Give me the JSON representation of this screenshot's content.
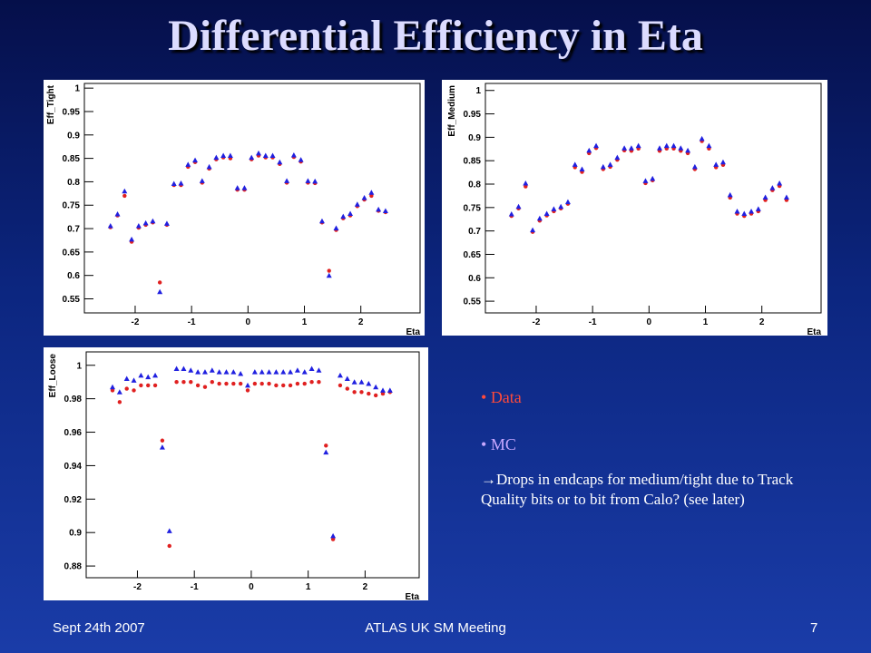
{
  "slide": {
    "title": "Differential Efficiency in Eta",
    "note": "→Drops in endcaps for medium/tight due to Track Quality bits or to bit from Calo? (see later)",
    "footer_left": "Sept 24th 2007",
    "footer_center": "ATLAS UK SM Meeting",
    "page_number": "7"
  },
  "chart_data": [
    {
      "type": "scatter",
      "ylabel": "Eff_Tight",
      "xlabel": "Eta",
      "xlim": [
        -2.9,
        3.05
      ],
      "ylim": [
        0.52,
        1.01
      ],
      "xticks": [
        -2,
        -1,
        0,
        1,
        2
      ],
      "yticks": [
        0.55,
        0.6,
        0.65,
        0.7,
        0.75,
        0.8,
        0.85,
        0.9,
        0.95,
        1
      ],
      "x": [
        -2.4375,
        -2.3125,
        -2.1875,
        -2.0625,
        -1.9375,
        -1.8125,
        -1.6875,
        -1.5625,
        -1.4375,
        -1.3125,
        -1.1875,
        -1.0625,
        -0.9375,
        -0.8125,
        -0.6875,
        -0.5625,
        -0.4375,
        -0.3125,
        -0.1875,
        -0.0625,
        0.0625,
        0.1875,
        0.3125,
        0.4375,
        0.5625,
        0.6875,
        0.8125,
        0.9375,
        1.0625,
        1.1875,
        1.3125,
        1.4375,
        1.5625,
        1.6875,
        1.8125,
        1.9375,
        2.0625,
        2.1875,
        2.3125,
        2.4375
      ],
      "series": [
        {
          "name": "Data",
          "color": "#e02020",
          "marker": "circle",
          "values": [
            0.703,
            0.728,
            0.77,
            0.672,
            0.702,
            0.708,
            0.713,
            0.585,
            0.708,
            0.793,
            0.793,
            0.832,
            0.842,
            0.798,
            0.828,
            0.848,
            0.852,
            0.85,
            0.783,
            0.783,
            0.848,
            0.856,
            0.852,
            0.852,
            0.838,
            0.798,
            0.853,
            0.843,
            0.798,
            0.797,
            0.713,
            0.61,
            0.697,
            0.722,
            0.728,
            0.748,
            0.762,
            0.77,
            0.738,
            0.735
          ]
        },
        {
          "name": "MC",
          "color": "#2020e0",
          "marker": "triangle",
          "values": [
            0.706,
            0.731,
            0.78,
            0.677,
            0.706,
            0.712,
            0.716,
            0.565,
            0.711,
            0.796,
            0.797,
            0.837,
            0.846,
            0.802,
            0.832,
            0.852,
            0.856,
            0.856,
            0.787,
            0.787,
            0.852,
            0.861,
            0.856,
            0.856,
            0.842,
            0.802,
            0.857,
            0.847,
            0.802,
            0.801,
            0.716,
            0.6,
            0.701,
            0.726,
            0.732,
            0.752,
            0.766,
            0.777,
            0.741,
            0.738
          ]
        }
      ]
    },
    {
      "type": "scatter",
      "ylabel": "Eff_Medium",
      "xlabel": "Eta",
      "xlim": [
        -2.9,
        3.05
      ],
      "ylim": [
        0.525,
        1.015
      ],
      "xticks": [
        -2,
        -1,
        0,
        1,
        2
      ],
      "yticks": [
        0.55,
        0.6,
        0.65,
        0.7,
        0.75,
        0.8,
        0.85,
        0.9,
        0.95,
        1
      ],
      "x": [
        -2.4375,
        -2.3125,
        -2.1875,
        -2.0625,
        -1.9375,
        -1.8125,
        -1.6875,
        -1.5625,
        -1.4375,
        -1.3125,
        -1.1875,
        -1.0625,
        -0.9375,
        -0.8125,
        -0.6875,
        -0.5625,
        -0.4375,
        -0.3125,
        -0.1875,
        -0.0625,
        0.0625,
        0.1875,
        0.3125,
        0.4375,
        0.5625,
        0.6875,
        0.8125,
        0.9375,
        1.0625,
        1.1875,
        1.3125,
        1.4375,
        1.5625,
        1.6875,
        1.8125,
        1.9375,
        2.0625,
        2.1875,
        2.3125,
        2.4375
      ],
      "series": [
        {
          "color": "#e02020",
          "marker": "circle",
          "values": [
            0.732,
            0.748,
            0.795,
            0.698,
            0.722,
            0.733,
            0.742,
            0.748,
            0.758,
            0.836,
            0.826,
            0.866,
            0.877,
            0.832,
            0.837,
            0.852,
            0.872,
            0.871,
            0.876,
            0.802,
            0.808,
            0.871,
            0.876,
            0.876,
            0.871,
            0.866,
            0.832,
            0.892,
            0.876,
            0.836,
            0.841,
            0.771,
            0.737,
            0.732,
            0.737,
            0.742,
            0.766,
            0.787,
            0.796,
            0.766
          ]
        },
        {
          "color": "#2020e0",
          "marker": "triangle",
          "values": [
            0.736,
            0.752,
            0.802,
            0.702,
            0.727,
            0.737,
            0.747,
            0.752,
            0.762,
            0.842,
            0.832,
            0.872,
            0.882,
            0.837,
            0.842,
            0.857,
            0.877,
            0.877,
            0.882,
            0.807,
            0.812,
            0.877,
            0.882,
            0.882,
            0.877,
            0.872,
            0.837,
            0.897,
            0.882,
            0.842,
            0.847,
            0.777,
            0.742,
            0.737,
            0.742,
            0.747,
            0.772,
            0.792,
            0.802,
            0.772
          ]
        }
      ]
    },
    {
      "type": "scatter",
      "ylabel": "Eff_Loose",
      "xlabel": "Eta",
      "xlim": [
        -2.9,
        2.95
      ],
      "ylim": [
        0.873,
        1.008
      ],
      "xticks": [
        -2,
        -1,
        0,
        1,
        2
      ],
      "yticks": [
        0.88,
        0.9,
        0.92,
        0.94,
        0.96,
        0.98,
        1
      ],
      "x": [
        -2.4375,
        -2.3125,
        -2.1875,
        -2.0625,
        -1.9375,
        -1.8125,
        -1.6875,
        -1.5625,
        -1.4375,
        -1.3125,
        -1.1875,
        -1.0625,
        -0.9375,
        -0.8125,
        -0.6875,
        -0.5625,
        -0.4375,
        -0.3125,
        -0.1875,
        -0.0625,
        0.0625,
        0.1875,
        0.3125,
        0.4375,
        0.5625,
        0.6875,
        0.8125,
        0.9375,
        1.0625,
        1.1875,
        1.3125,
        1.4375,
        1.5625,
        1.6875,
        1.8125,
        1.9375,
        2.0625,
        2.1875,
        2.3125,
        2.4375
      ],
      "series": [
        {
          "color": "#e02020",
          "marker": "circle",
          "values": [
            0.985,
            0.978,
            0.986,
            0.985,
            0.988,
            0.988,
            0.988,
            0.955,
            0.892,
            0.99,
            0.99,
            0.99,
            0.988,
            0.987,
            0.99,
            0.989,
            0.989,
            0.989,
            0.989,
            0.985,
            0.989,
            0.989,
            0.989,
            0.988,
            0.988,
            0.988,
            0.989,
            0.989,
            0.99,
            0.99,
            0.952,
            0.896,
            0.988,
            0.986,
            0.984,
            0.984,
            0.983,
            0.982,
            0.983,
            0.984
          ]
        },
        {
          "color": "#2020e0",
          "marker": "triangle",
          "values": [
            0.987,
            0.984,
            0.992,
            0.991,
            0.994,
            0.993,
            0.994,
            0.951,
            0.901,
            0.998,
            0.998,
            0.997,
            0.996,
            0.996,
            0.997,
            0.996,
            0.996,
            0.996,
            0.995,
            0.988,
            0.996,
            0.996,
            0.996,
            0.996,
            0.996,
            0.996,
            0.997,
            0.996,
            0.998,
            0.997,
            0.948,
            0.898,
            0.994,
            0.992,
            0.99,
            0.99,
            0.989,
            0.987,
            0.985,
            0.985
          ]
        }
      ]
    }
  ]
}
